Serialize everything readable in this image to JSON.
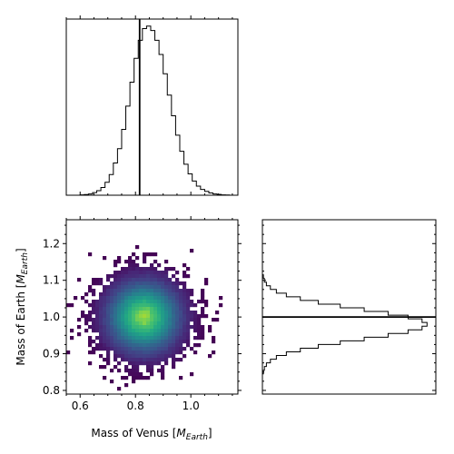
{
  "chart_data": {
    "type": "corner",
    "title": "",
    "truth": {
      "mass_of_venus": 0.815,
      "mass_of_earth": 1.0
    },
    "x_marginal": {
      "type": "histogram-step",
      "orientation": "vertical",
      "xlim": [
        0.55,
        1.17
      ],
      "bin_edges_start": 0.6,
      "bin_width": 0.015,
      "counts": [
        0.5,
        1,
        2,
        4,
        7,
        12,
        20,
        32,
        50,
        72,
        102,
        138,
        175,
        212,
        240,
        258,
        262,
        255,
        240,
        218,
        188,
        155,
        123,
        93,
        68,
        48,
        33,
        22,
        14,
        9,
        6,
        3.5,
        2,
        1.2,
        0.6,
        0.3
      ],
      "max_count": 270
    },
    "y_marginal": {
      "type": "histogram-step",
      "orientation": "horizontal",
      "ylim": [
        0.79,
        1.265
      ],
      "bin_edges_start": 0.845,
      "bin_width": 0.01,
      "counts": [
        1,
        2,
        4,
        8,
        14,
        24,
        38,
        56,
        78,
        102,
        126,
        146,
        160,
        165,
        160,
        146,
        126,
        102,
        78,
        56,
        38,
        24,
        14,
        8,
        4,
        2,
        1
      ],
      "max_count": 172
    },
    "joint": {
      "type": "heatmap",
      "colormap": "viridis",
      "xlim": [
        0.55,
        1.17
      ],
      "ylim": [
        0.79,
        1.265
      ],
      "xlabel": "Mass of Venus [M_Earth]",
      "ylabel": "Mass of Earth [M_Earth]",
      "xticks": [
        {
          "value": 0.6,
          "label": "0.6"
        },
        {
          "value": 0.8,
          "label": "0.8"
        },
        {
          "value": 1.0,
          "label": "1.0"
        }
      ],
      "yticks": [
        {
          "value": 0.8,
          "label": "0.8"
        },
        {
          "value": 0.9,
          "label": "0.9"
        },
        {
          "value": 1.0,
          "label": "1.0"
        },
        {
          "value": 1.1,
          "label": "1.1"
        },
        {
          "value": 1.2,
          "label": "1.2"
        }
      ],
      "center": [
        0.83,
        1.0
      ],
      "spread": [
        0.068,
        0.05
      ]
    },
    "labels": {
      "xlabel_prefix": "Mass of Venus [",
      "xlabel_unit": "M",
      "xlabel_sub": "Earth",
      "xlabel_suffix": "]",
      "ylabel_prefix": "Mass of Earth [",
      "ylabel_unit": "M",
      "ylabel_sub": "Earth",
      "ylabel_suffix": "]"
    }
  }
}
